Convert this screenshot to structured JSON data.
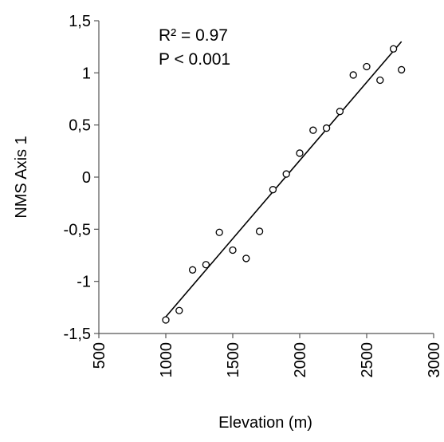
{
  "chart_data": {
    "type": "scatter",
    "title": "",
    "xlabel": "Elevation (m)",
    "ylabel": "NMS Axis 1",
    "xlim": [
      500,
      3000
    ],
    "ylim": [
      -1.5,
      1.5
    ],
    "x_ticks": [
      500,
      1000,
      1500,
      2000,
      2500,
      3000
    ],
    "x_tick_labels": [
      "500",
      "1000",
      "1500",
      "2000",
      "2500",
      "3000"
    ],
    "y_ticks": [
      -1.5,
      -1,
      -0.5,
      0,
      0.5,
      1,
      1.5
    ],
    "y_tick_labels": [
      "-1,5",
      "-1",
      "-0,5",
      "0",
      "0,5",
      "1",
      "1,5"
    ],
    "grid": false,
    "legend": "none",
    "series": [
      {
        "marker": "open-circle",
        "color": "#000000",
        "points": [
          {
            "x": 1000,
            "y": -1.37
          },
          {
            "x": 1100,
            "y": -1.28
          },
          {
            "x": 1200,
            "y": -0.89
          },
          {
            "x": 1300,
            "y": -0.84
          },
          {
            "x": 1400,
            "y": -0.53
          },
          {
            "x": 1500,
            "y": -0.7
          },
          {
            "x": 1600,
            "y": -0.78
          },
          {
            "x": 1700,
            "y": -0.52
          },
          {
            "x": 1800,
            "y": -0.12
          },
          {
            "x": 1900,
            "y": 0.03
          },
          {
            "x": 2000,
            "y": 0.23
          },
          {
            "x": 2100,
            "y": 0.45
          },
          {
            "x": 2200,
            "y": 0.47
          },
          {
            "x": 2300,
            "y": 0.63
          },
          {
            "x": 2400,
            "y": 0.98
          },
          {
            "x": 2500,
            "y": 1.06
          },
          {
            "x": 2600,
            "y": 0.93
          },
          {
            "x": 2700,
            "y": 1.23
          },
          {
            "x": 2760,
            "y": 1.03
          }
        ]
      }
    ],
    "trendline": {
      "type": "linear",
      "x_start": 1000,
      "y_start": -1.34,
      "x_end": 2760,
      "y_end": 1.3,
      "color": "#000000"
    },
    "annotations": [
      "R² = 0.97",
      "P < 0.001"
    ]
  }
}
